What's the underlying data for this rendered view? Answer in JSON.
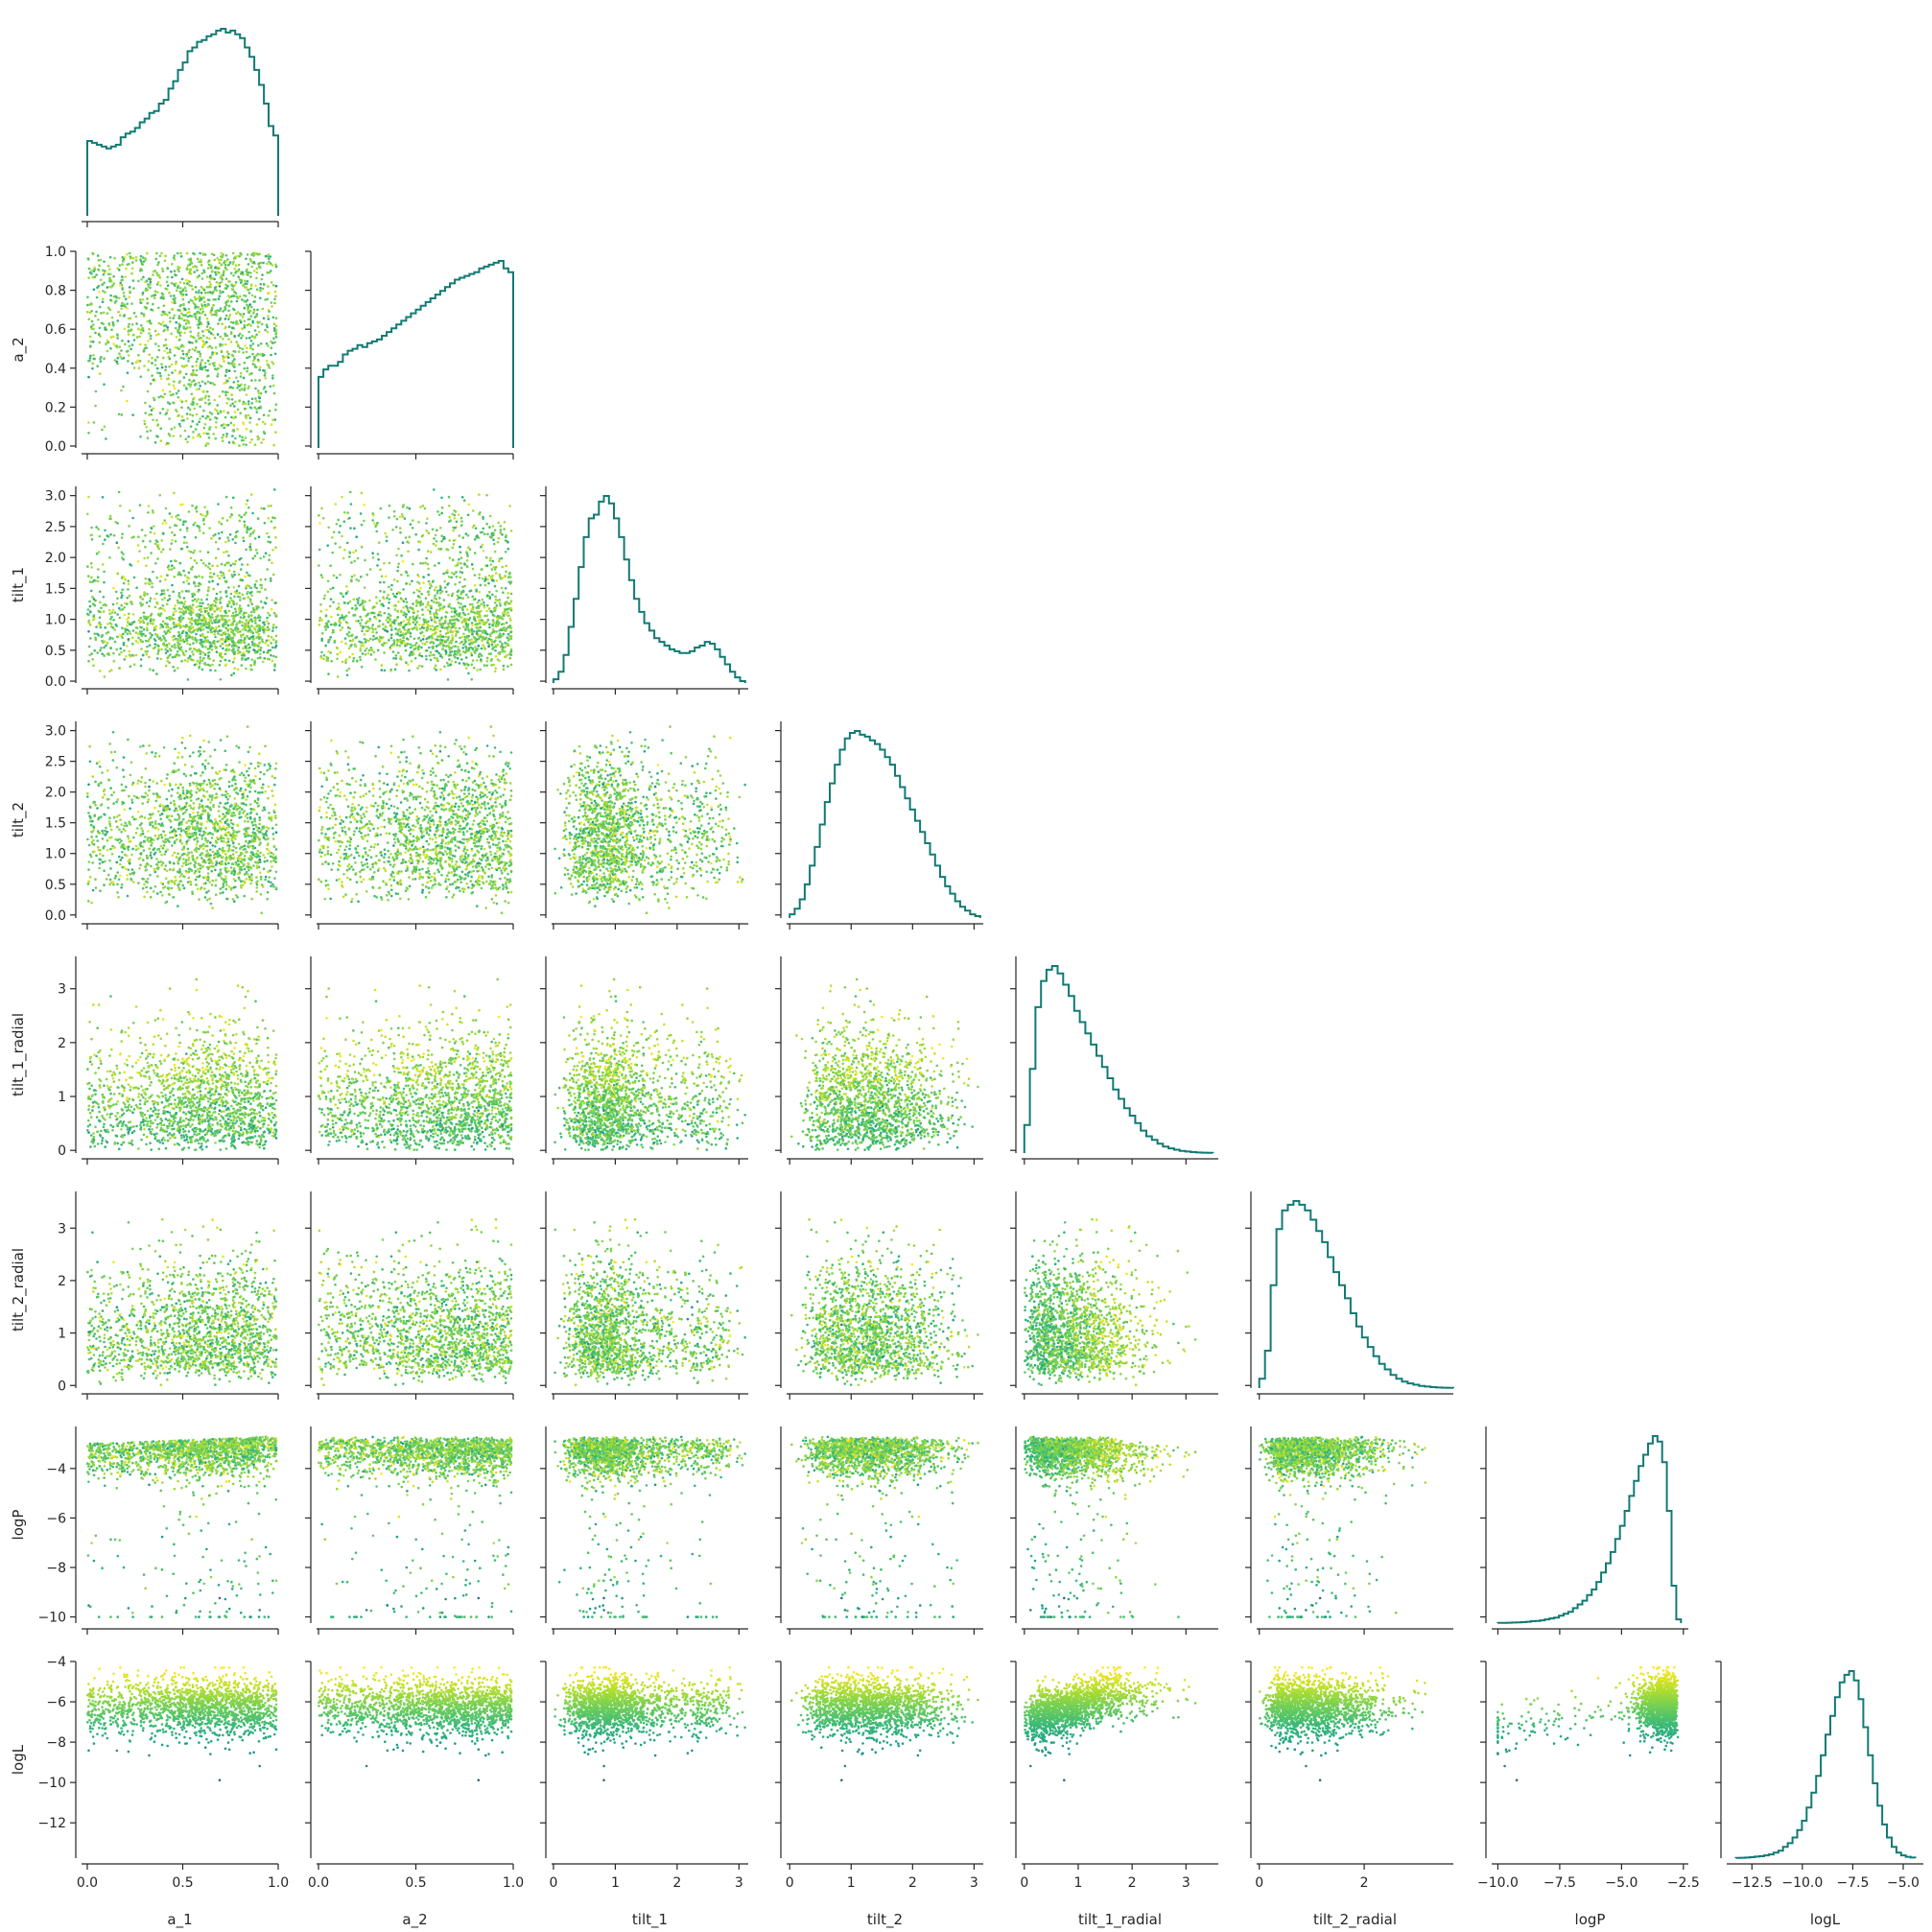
{
  "chart_data": {
    "type": "pairplot",
    "lower_panel_type": "scatter",
    "diagonal_type": "step-histogram",
    "layout": "corner (lower triangle)",
    "point_colormap": "viridis",
    "histogram_color": "#117a74",
    "variables": [
      "a_1",
      "a_2",
      "tilt_1",
      "tilt_2",
      "tilt_1_radial",
      "tilt_2_radial",
      "logP",
      "logL"
    ],
    "xlabels": [
      "a_1",
      "a_2",
      "tilt_1",
      "tilt_2",
      "tilt_1_radial",
      "tilt_2_radial",
      "logP",
      "logL"
    ],
    "ylabels": [
      "",
      "a_2",
      "tilt_1",
      "tilt_2",
      "tilt_1_radial",
      "tilt_2_radial",
      "logP",
      "logL"
    ],
    "ranges": {
      "a_1": [
        -0.03,
        1.0
      ],
      "a_2": [
        -0.01,
        1.0
      ],
      "tilt_1": [
        -0.03,
        3.15
      ],
      "tilt_2": [
        -0.05,
        3.15
      ],
      "tilt_1_radial": [
        -0.05,
        3.6
      ],
      "tilt_2_radial": [
        -0.05,
        3.7
      ],
      "logP": [
        -10.25,
        -2.3
      ],
      "logL": [
        -13.75,
        -4.0
      ]
    },
    "ticks": {
      "a_1": [
        0.0,
        0.5,
        1.0
      ],
      "a_2": [
        0.0,
        0.2,
        0.4,
        0.6,
        0.8,
        1.0
      ],
      "tilt_1": [
        0.0,
        0.5,
        1.0,
        1.5,
        2.0,
        2.5,
        3.0
      ],
      "tilt_2": [
        0.0,
        0.5,
        1.0,
        1.5,
        2.0,
        2.5,
        3.0
      ],
      "tilt_1_radial": [
        0,
        1,
        2,
        3
      ],
      "tilt_2_radial": [
        0,
        1,
        2,
        3
      ],
      "logP": [
        -10,
        -8,
        -6,
        -4
      ],
      "logL": [
        -12,
        -10,
        -8,
        -6,
        -4
      ]
    },
    "xticks": {
      "a_1": [
        "0.0",
        "0.5",
        "1.0"
      ],
      "a_2": [
        "0.0",
        "0.5",
        "1.0"
      ],
      "tilt_1": [
        "0",
        "1",
        "2",
        "3"
      ],
      "tilt_2": [
        "0",
        "1",
        "2",
        "3"
      ],
      "tilt_1_radial": [
        "0",
        "1",
        "2",
        "3"
      ],
      "tilt_2_radial": [
        "0",
        "2"
      ],
      "logP": [
        "−10.0",
        "−7.5",
        "−5.0",
        "−2.5"
      ],
      "logL": [
        "−12.5",
        "−10.0",
        "−7.5",
        "−5.0"
      ]
    },
    "yticks": {
      "a_2": [
        "0.0",
        "0.2",
        "0.4",
        "0.6",
        "0.8",
        "1.0"
      ],
      "tilt_1": [
        "0.0",
        "0.5",
        "1.0",
        "1.5",
        "2.0",
        "2.5",
        "3.0"
      ],
      "tilt_2": [
        "0.0",
        "0.5",
        "1.0",
        "1.5",
        "2.0",
        "2.5",
        "3.0"
      ],
      "tilt_1_radial": [
        "0",
        "1",
        "2",
        "3"
      ],
      "tilt_2_radial": [
        "0",
        "1",
        "2",
        "3"
      ],
      "logP": [
        "−10",
        "−8",
        "−6",
        "−4"
      ],
      "logL": [
        "−12",
        "−10",
        "−8",
        "−6",
        "−4"
      ]
    },
    "histograms": {
      "a_1": [
        0.4,
        0.39,
        0.38,
        0.37,
        0.36,
        0.37,
        0.38,
        0.42,
        0.44,
        0.45,
        0.47,
        0.5,
        0.52,
        0.55,
        0.56,
        0.6,
        0.62,
        0.68,
        0.72,
        0.78,
        0.82,
        0.88,
        0.9,
        0.93,
        0.94,
        0.96,
        0.97,
        0.99,
        1.0,
        0.98,
        0.99,
        0.97,
        0.95,
        0.9,
        0.85,
        0.78,
        0.7,
        0.6,
        0.48,
        0.43
      ],
      "a_2": [
        0.38,
        0.42,
        0.44,
        0.44,
        0.46,
        0.5,
        0.52,
        0.53,
        0.55,
        0.54,
        0.56,
        0.57,
        0.58,
        0.6,
        0.62,
        0.64,
        0.66,
        0.68,
        0.7,
        0.72,
        0.74,
        0.76,
        0.78,
        0.8,
        0.82,
        0.84,
        0.86,
        0.88,
        0.9,
        0.91,
        0.92,
        0.93,
        0.94,
        0.96,
        0.97,
        0.98,
        0.99,
        1.0,
        0.96,
        0.94
      ],
      "tilt_1": [
        0.02,
        0.06,
        0.15,
        0.3,
        0.45,
        0.62,
        0.78,
        0.88,
        0.9,
        0.97,
        1.0,
        0.96,
        0.88,
        0.78,
        0.66,
        0.55,
        0.45,
        0.38,
        0.32,
        0.28,
        0.24,
        0.22,
        0.2,
        0.18,
        0.17,
        0.16,
        0.16,
        0.17,
        0.19,
        0.2,
        0.22,
        0.21,
        0.18,
        0.14,
        0.1,
        0.06,
        0.03,
        0.01
      ],
      "tilt_2": [
        0.02,
        0.05,
        0.1,
        0.18,
        0.28,
        0.38,
        0.5,
        0.62,
        0.72,
        0.82,
        0.9,
        0.96,
        0.99,
        1.0,
        0.98,
        0.97,
        0.95,
        0.93,
        0.9,
        0.86,
        0.82,
        0.76,
        0.7,
        0.64,
        0.58,
        0.52,
        0.46,
        0.4,
        0.34,
        0.28,
        0.22,
        0.17,
        0.13,
        0.09,
        0.06,
        0.04,
        0.02,
        0.01
      ],
      "tilt_1_radial": [
        0.15,
        0.45,
        0.78,
        0.92,
        0.98,
        1.0,
        0.96,
        0.9,
        0.84,
        0.76,
        0.7,
        0.64,
        0.58,
        0.52,
        0.46,
        0.4,
        0.34,
        0.29,
        0.24,
        0.2,
        0.16,
        0.12,
        0.09,
        0.07,
        0.05,
        0.035,
        0.025,
        0.018,
        0.012,
        0.008,
        0.005,
        0.003,
        0.002,
        0.001
      ],
      "tilt_2_radial": [
        0.05,
        0.2,
        0.55,
        0.85,
        0.95,
        0.98,
        1.0,
        0.98,
        0.95,
        0.9,
        0.84,
        0.78,
        0.7,
        0.62,
        0.55,
        0.48,
        0.4,
        0.33,
        0.27,
        0.22,
        0.17,
        0.13,
        0.1,
        0.07,
        0.05,
        0.035,
        0.025,
        0.018,
        0.012,
        0.008,
        0.005,
        0.003,
        0.002,
        0.001
      ],
      "logP": [
        0.001,
        0.001,
        0.002,
        0.003,
        0.004,
        0.005,
        0.007,
        0.01,
        0.012,
        0.015,
        0.02,
        0.025,
        0.03,
        0.04,
        0.05,
        0.06,
        0.08,
        0.1,
        0.12,
        0.15,
        0.18,
        0.22,
        0.27,
        0.32,
        0.38,
        0.45,
        0.52,
        0.6,
        0.68,
        0.76,
        0.84,
        0.9,
        0.96,
        1.0,
        0.97,
        0.86,
        0.6,
        0.2,
        0.02
      ],
      "logL": [
        0.001,
        0.002,
        0.003,
        0.005,
        0.008,
        0.01,
        0.015,
        0.02,
        0.03,
        0.04,
        0.06,
        0.08,
        0.11,
        0.15,
        0.2,
        0.27,
        0.35,
        0.44,
        0.55,
        0.66,
        0.76,
        0.86,
        0.94,
        0.98,
        1.0,
        0.95,
        0.85,
        0.7,
        0.55,
        0.4,
        0.28,
        0.18,
        0.11,
        0.06,
        0.03,
        0.015,
        0.007,
        0.003
      ]
    }
  }
}
